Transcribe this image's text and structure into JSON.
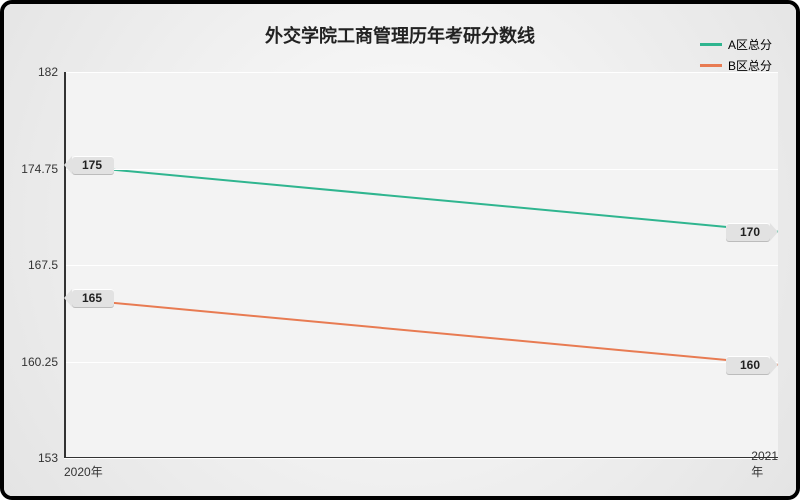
{
  "title": "外交学院工商管理历年考研分数线",
  "background_gradient": {
    "from": "#fdfdfd",
    "to": "#e4e4e4"
  },
  "plot_background": "#f3f3f3",
  "grid_color": "#ffffff",
  "axis_color": "#333333",
  "title_fontsize": 18,
  "tick_fontsize": 12,
  "legend_fontsize": 12,
  "y_axis": {
    "min": 153,
    "max": 182,
    "ticks": [
      153,
      160.25,
      167.5,
      174.75,
      182
    ]
  },
  "x_axis": {
    "categories": [
      "2020年",
      "2021年"
    ]
  },
  "series": [
    {
      "name": "A区总分",
      "color": "#2fb58f",
      "line_width": 2,
      "values": [
        175,
        170
      ]
    },
    {
      "name": "B区总分",
      "color": "#e87b52",
      "line_width": 2,
      "values": [
        165,
        160
      ]
    }
  ],
  "tag_bg": "#e2e2e2",
  "tag_shadow": "#bcbcbc"
}
